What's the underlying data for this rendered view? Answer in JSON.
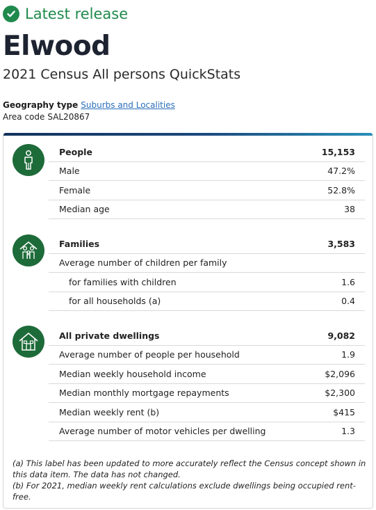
{
  "release": {
    "label": "Latest release",
    "icon": "check-circle-icon",
    "color": "#1f8a4c"
  },
  "title": "Elwood",
  "subtitle": "2021 Census All persons QuickStats",
  "geography": {
    "type_label": "Geography type",
    "type_value": "Suburbs and Localities",
    "code_label": "Area code",
    "code_value": "SAL20867"
  },
  "sections": {
    "people": {
      "icon": "person-icon",
      "rows": [
        {
          "label": "People",
          "value": "15,153"
        },
        {
          "label": "Male",
          "value": "47.2%"
        },
        {
          "label": "Female",
          "value": "52.8%"
        },
        {
          "label": "Median age",
          "value": "38"
        }
      ]
    },
    "families": {
      "icon": "family-icon",
      "rows": [
        {
          "label": "Families",
          "value": "3,583"
        },
        {
          "label": "Average number of children per family",
          "value": ""
        },
        {
          "label": "for families with children",
          "value": "1.6"
        },
        {
          "label": "for all households (a)",
          "value": "0.4"
        }
      ]
    },
    "dwellings": {
      "icon": "house-icon",
      "rows": [
        {
          "label": "All private dwellings",
          "value": "9,082"
        },
        {
          "label": "Average number of people per household",
          "value": "1.9"
        },
        {
          "label": "Median weekly household income",
          "value": "$2,096"
        },
        {
          "label": "Median monthly mortgage repayments",
          "value": "$2,300"
        },
        {
          "label": "Median weekly rent (b)",
          "value": "$415"
        },
        {
          "label": "Average number of motor vehicles per dwelling",
          "value": "1.3"
        }
      ]
    }
  },
  "notes": {
    "a": "(a) This label has been updated to more accurately reflect the Census concept shown in this data item. The data has not changed.",
    "b": "(b) For 2021, median weekly rent calculations exclude dwellings being occupied rent-free."
  },
  "colors": {
    "accent_green": "#1e6b3a",
    "link": "#2a6ebb",
    "bar_dark": "#12325c",
    "bar_light": "#2a8fb8"
  }
}
